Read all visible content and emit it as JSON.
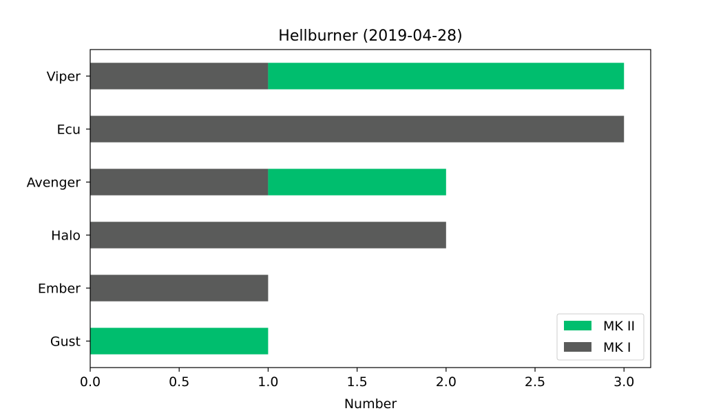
{
  "chart_data": {
    "type": "bar",
    "orientation": "horizontal",
    "stacked": true,
    "title": "Hellburner (2019-04-28)",
    "xlabel": "Number",
    "ylabel": "",
    "categories": [
      "Gust",
      "Ember",
      "Halo",
      "Avenger",
      "Ecu",
      "Viper"
    ],
    "series": [
      {
        "name": "MK I",
        "color": "#5a5b5a",
        "values": [
          0,
          1,
          2,
          1,
          3,
          1
        ]
      },
      {
        "name": "MK II",
        "color": "#00be6e",
        "values": [
          1,
          0,
          0,
          1,
          0,
          2
        ]
      }
    ],
    "xlim": [
      0,
      3.15
    ],
    "xticks": [
      "0.0",
      "0.5",
      "1.0",
      "1.5",
      "2.0",
      "2.5",
      "3.0"
    ],
    "legend_order": [
      "MK II",
      "MK I"
    ],
    "legend_position": "lower-right",
    "grid": false
  }
}
